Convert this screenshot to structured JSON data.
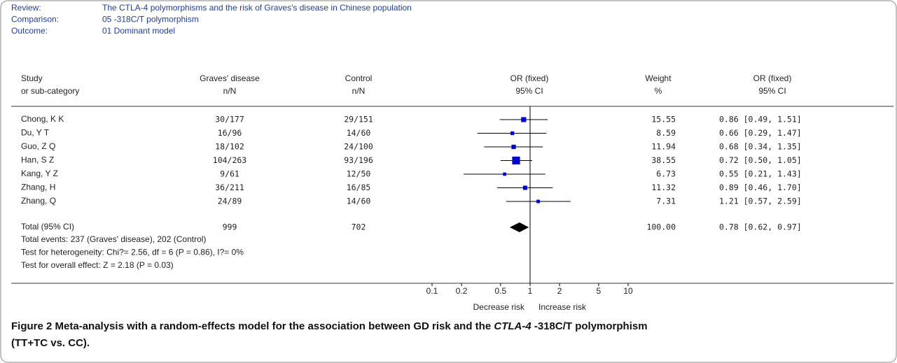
{
  "chart_data": {
    "type": "forest",
    "header": [
      {
        "label": "Review:",
        "text": "The CTLA-4 polymorphisms and the risk of Graves's disease in Chinese population"
      },
      {
        "label": "Comparison:",
        "text": "05 -318C/T polymorphism"
      },
      {
        "label": "Outcome:",
        "text": "01 Dominant model"
      }
    ],
    "columns": [
      [
        "Study",
        "or sub-category"
      ],
      [
        "Graves' disease",
        "n/N"
      ],
      [
        "Control",
        "n/N"
      ],
      [
        "OR (fixed)",
        "95% CI"
      ],
      [
        "Weight",
        "%"
      ],
      [
        "OR (fixed)",
        "95% CI"
      ]
    ],
    "categories": [
      "Chong, K K",
      "Du, Y T",
      "Guo, Z Q",
      "Han, S Z",
      "Kang, Y Z",
      "Zhang, H",
      "Zhang, Q"
    ],
    "cases": [
      "30/177",
      "16/96",
      "18/102",
      "104/263",
      "9/61",
      "36/211",
      "24/89"
    ],
    "controls": [
      "29/151",
      "14/60",
      "24/100",
      "93/196",
      "12/50",
      "16/85",
      "14/60"
    ],
    "weights": {
      "values": [
        15.55,
        8.59,
        11.94,
        38.55,
        6.73,
        11.32,
        7.31
      ],
      "value_labels": [
        "15.55",
        "8.59",
        "11.94",
        "38.55",
        "6.73",
        "11.32",
        "7.31"
      ]
    },
    "or": {
      "values": [
        0.86,
        0.66,
        0.68,
        0.72,
        0.55,
        0.89,
        1.21
      ],
      "lower": [
        0.49,
        0.29,
        0.34,
        0.5,
        0.21,
        0.46,
        0.57
      ],
      "upper": [
        1.51,
        1.47,
        1.35,
        1.05,
        1.43,
        1.7,
        2.59
      ],
      "value_labels": [
        "0.86 [0.49, 1.51]",
        "0.66 [0.29, 1.47]",
        "0.68 [0.34, 1.35]",
        "0.72 [0.50, 1.05]",
        "0.55 [0.21, 1.43]",
        "0.89 [0.46, 1.70]",
        "1.21 [0.57, 2.59]"
      ]
    },
    "color": "#0000cc",
    "total": {
      "label": "Total (95% CI)",
      "cases": 999,
      "controls": 702,
      "weight": 100,
      "weight_label": "100.00",
      "or": 0.78,
      "lower": 0.62,
      "upper": 0.97,
      "or_label": "0.78 [0.62, 0.97]"
    },
    "notes": [
      "Total events: 237 (Graves' disease), 202 (Control)",
      "Test for heterogeneity: Chi?= 2.56, df = 6 (P = 0.86), I?= 0%",
      "Test for overall effect: Z = 2.18 (P = 0.03)"
    ],
    "log_x": true,
    "xlim": [
      0.1,
      10
    ],
    "xticks": [
      0.1,
      0.2,
      0.5,
      1,
      2,
      5,
      10
    ],
    "x_labels": [
      "Decrease risk",
      "Increase risk"
    ],
    "caption": {
      "label": "Figure 2",
      "text": "Meta-analysis with a random-effects model for the association between GD risk and the ",
      "italic": "CTLA-4",
      "text2": " -318C/T polymorphism",
      "line2": "(TT+TC vs. CC)."
    }
  }
}
